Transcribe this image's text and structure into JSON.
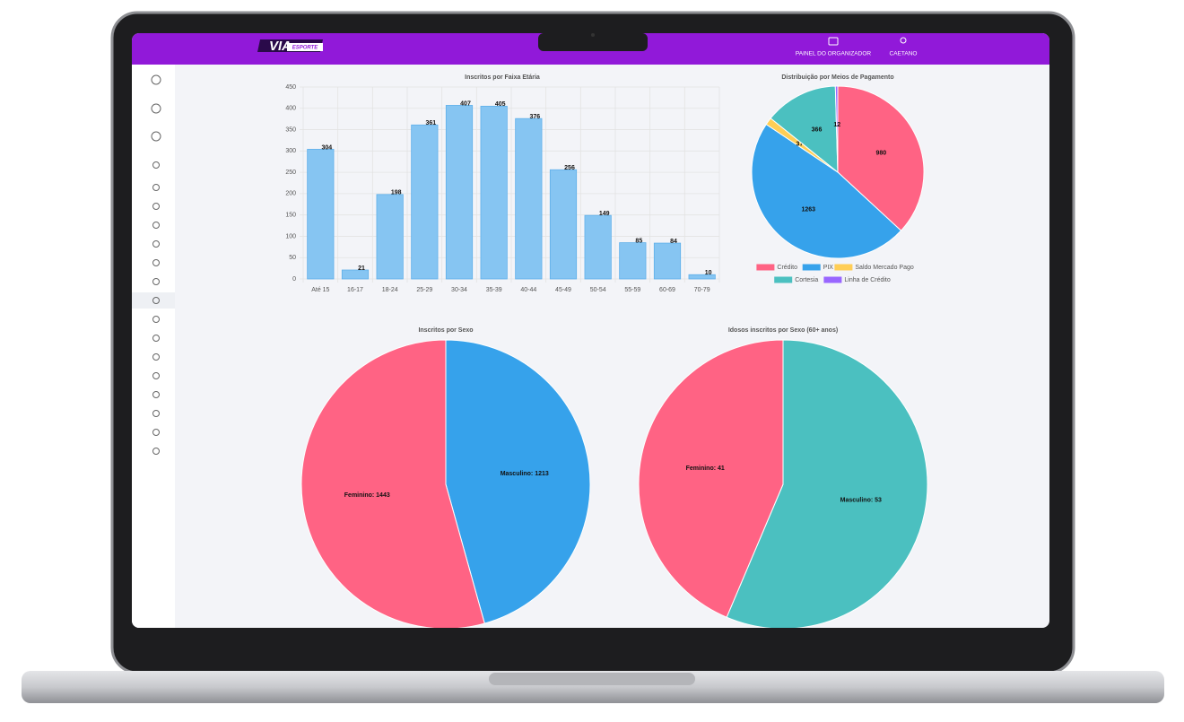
{
  "header": {
    "logo": "VIA",
    "logo_sub": "ESPORTE",
    "menu": [
      "PAINEL DO ORGANIZADOR",
      "CAETANO"
    ]
  },
  "chart_data": [
    {
      "type": "bar",
      "title": "Inscritos por Faixa Etária",
      "categories": [
        "Até 15",
        "16-17",
        "18-24",
        "25-29",
        "30-34",
        "35-39",
        "40-44",
        "45-49",
        "50-54",
        "55-59",
        "60-69",
        "70-79"
      ],
      "values": [
        304,
        21,
        198,
        361,
        407,
        405,
        376,
        256,
        149,
        85,
        84,
        10
      ],
      "color": "#86c5f2",
      "ylim": [
        0,
        450
      ],
      "yticks": [
        0,
        50,
        100,
        150,
        200,
        250,
        300,
        350,
        400,
        450
      ],
      "grid": true
    },
    {
      "type": "pie",
      "title": "Distribuição por Meios de Pagamento",
      "categories": [
        "Crédito",
        "PIX",
        "Saldo Mercado Pago",
        "Cortesia",
        "Linha de Crédito"
      ],
      "values": [
        980,
        1263,
        37,
        366,
        12
      ],
      "colors": [
        "#ff6384",
        "#36a2eb",
        "#ffce56",
        "#4bc0c0",
        "#9966ff"
      ],
      "legend": "bottom"
    },
    {
      "type": "pie",
      "title": "Inscritos por Sexo",
      "values": [
        1213,
        1443
      ],
      "value_labels": [
        "Masculino: 1213",
        "Feminino: 1443"
      ],
      "colors": [
        "#36a2eb",
        "#ff6384"
      ]
    },
    {
      "type": "pie",
      "title": "Idosos inscritos por Sexo (60+ anos)",
      "values": [
        53,
        41
      ],
      "value_labels": [
        "Masculino: 53",
        "Feminino: 41"
      ],
      "colors": [
        "#4bc0c0",
        "#ff6384"
      ]
    }
  ]
}
